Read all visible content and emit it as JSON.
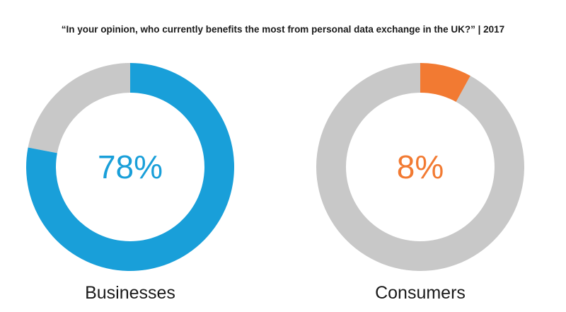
{
  "title": "“In your opinion, who currently benefits the most from personal data exchange in the UK?” | 2017",
  "chart_data": [
    {
      "type": "pie",
      "category": "Businesses",
      "value": 78,
      "value_label": "78%",
      "remainder_color": "#c8c8c8",
      "accent_color": "#199fd9"
    },
    {
      "type": "pie",
      "category": "Consumers",
      "value": 8,
      "value_label": "8%",
      "remainder_color": "#c8c8c8",
      "accent_color": "#f27a32"
    }
  ]
}
